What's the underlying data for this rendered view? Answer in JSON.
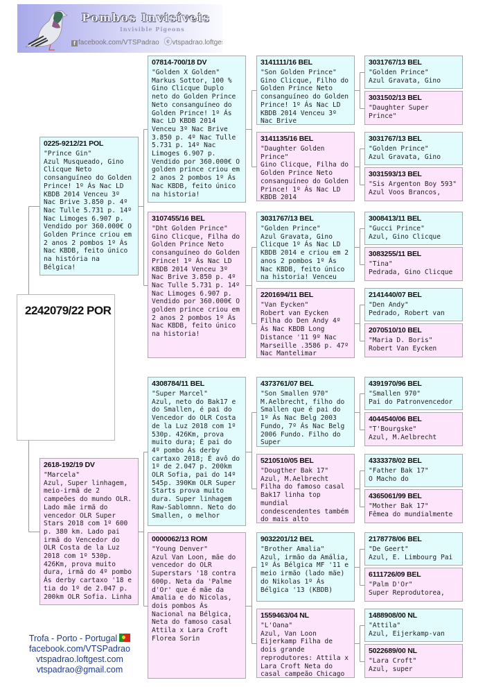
{
  "header": {
    "logo_title": "Pombos Invisíveis",
    "logo_subtitle": "Invisible Pigeons",
    "logo_facebook": "facebook.com/VTSPadrao",
    "logo_website": "vtspadrao.loftgest.com"
  },
  "colors": {
    "male": "#e2fbfd",
    "female": "#fde6fb",
    "border": "#a8a8a8",
    "footer_text": "#1c3a8c"
  },
  "subject": {
    "ring": "2242079/22 POR",
    "text": ""
  },
  "parents": [
    {
      "sex": "M",
      "ring": "0225-9212/21 POL",
      "text": "\"Prince Gin\"\nAzul Musqueado, Gino Clicque Neto consanguíneo do Golden Prince! 1º Ás Nac LD KBDB 2014 Venceu 3º Nac Brive 3.850 p. 4º Nac Tulle 5.731 p. 14º Nac Limoges 6.907 p. Vendido por 360.000€ O Golden Prince criou em 2 anos 2 pombos 1º Ás Nac KBDB, feito único na história na Bélgica!"
    },
    {
      "sex": "F",
      "ring": "2618-192/19 DV",
      "text": "\"Marcela\"\nAzul, Super linhagem, meio-irmã de 2 campeões do mundo OLR. Lado mãe irmã do vencedor OLR Super Stars 2018 com 1º 600 p. 380 km. Lado pai irmã do Vencedor do OLR Costa de la Luz 2018 com 1º 530p. 426Km, prova muito dura, irmã do 4º pombo Ás derby cartaxo '18 e tia do 1º de 2.047 p. 200km OLR Sofia. Linha"
    }
  ],
  "grandparents": [
    {
      "sex": "M",
      "ring": "07814-700/18 DV",
      "text": "\"Golden X Golden\"\nMarkus Sottor, 100 % Gino Clicque Duplo neto do Golden Prince Neto consanguíneo do Golden Prince! 1º Ás Nac LD KBDB 2014 Venceu 3º Nac Brive 3.850 p. 4º Nac Tulle 5.731 p. 14º Nac Limoges 6.907 p. Vendido por 360.000€ O golden prince criou em 2 anos 2 pombos 1º Ás Nac KBDB, feito único na historia!"
    },
    {
      "sex": "F",
      "ring": "3107455/16 BEL",
      "text": "\"Dht Golden Prince\"\nGino Clicque, Filha do Golden Prince Neto consanguíneo do Golden Prince! 1º Ás Nac LD KBDB 2014 Venceu 3º Nac Brive 3.850 p. 4º Nac Tulle 5.731 p. 14º Nac Limoges 6.907 p. Vendido por 360.000€ O golden prince criou em 2 anos 2 pombos 1º Ás Nac KBDB, feito único na historia!"
    },
    {
      "sex": "M",
      "ring": "4308784/11 BEL",
      "text": "\"Super Marcel\"\nAzul, neto do Bak17 e do Smallen, é pai do Vencedor do OLR Costa de la Luz 2018 com 1º 530p. 426Km, prova muito dura; É pai do 4º pombo Ás derby cartaxo 2018; É avô do 1º de 2.047 p. 200km OLR Sofia, pai do 14º 545p. 390Km OLR Super Starts prova muito dura. Super linhagem Raw-Sablomnn. Neto do Smallen, o melhor"
    },
    {
      "sex": "F",
      "ring": "0000062/13 ROM",
      "text": "\"Young Denver\"\nAzul Van Loon, mãe do vencedor do OLR Superstars '18 contra 600p. Neta da 'Palme d'Or' que é mãe da Amalia e do Nicolas, dois pombos Ás Nacional na Bélgica, Neta do famoso casal Attila x Lara Croft Florea Sorin"
    }
  ],
  "great_grandparents": [
    {
      "sex": "M",
      "ring": "3141111/16 BEL",
      "text": "\"Son Golden Prince\"\nGino Clicque, Filho do Golden Prince Neto consanguíneo do Golden Prince! 1º Ás Nac LD KBDB 2014 Venceu 3º Nac Brive"
    },
    {
      "sex": "F",
      "ring": "3141135/16 BEL",
      "text": "\"Daughter Golden Prince\"\nGino Clicque, Filha do Golden Prince Neto consanguíneo do Golden Prince! 1º Ás Nac LD KBDB 2014"
    },
    {
      "sex": "M",
      "ring": "3031767/13 BEL",
      "text": "\"Golden Prince\"\nAzul Gravata, Gino Clicque 1º Ás Nac LD KBDB 2014 e criou em 2 anos 2 pombos 1º Ás Nac KBDB, feito único na historia! Venceu"
    },
    {
      "sex": "F",
      "ring": "2201694/11 BEL",
      "text": "\"Van Eycken\"\nRobert van Eycken Filha do Den Andy 4º Ás Nac KBDB Long Distance '11 9º Nac Marseille .3586 p. 47º Nac Mantelimar"
    },
    {
      "sex": "M",
      "ring": "4373761/07 BEL",
      "text": "\"Son Smallen 970\"\nM.Aelbrecht, filho do Smallen que é pai do 1º Ás Nac Belg 2003 Fundo, 7º  Ás Nac Belg 2006 Fundo. Filho do Super"
    },
    {
      "sex": "F",
      "ring": "5210510/05 BEL",
      "text": "\"Dougther Bak 17\"\nAzul, M.Aelbrecht Filha do famoso casal Bak17 linha top mundial condescendentes também do mais alto"
    },
    {
      "sex": "M",
      "ring": "9032201/12 BEL",
      "text": "\"Brother Amalia\"\nAzul, irmão da Amália, 1º Ás Bélgica MF '11 e meio irmão (lado mãe) do Nikolas 1º Ás Bélgica '13 (KBDB)"
    },
    {
      "sex": "F",
      "ring": "1559463/04 NL",
      "text": "\"L'Oana\"\nAzul, Van Loon Eijerkamp Filha de dois grande reprodutores: Attila x Lara Croft Neta do casal campeão Chicago"
    }
  ],
  "great_great_grandparents": [
    {
      "sex": "M",
      "ring": "3031767/13 BEL",
      "text": "\"Golden Prince\"\nAzul Gravata, Gino"
    },
    {
      "sex": "F",
      "ring": "3031502/13 BEL",
      "text": "\"Daughter Super Prince\""
    },
    {
      "sex": "M",
      "ring": "3031767/13 BEL",
      "text": "\"Golden Prince\"\nAzul Gravata, Gino"
    },
    {
      "sex": "F",
      "ring": "3031593/13 BEL",
      "text": "\"Sis Argenton Boy 593\"\nAzul Voos Brancos,"
    },
    {
      "sex": "M",
      "ring": "3008413/11 BEL",
      "text": "\"Gucci Prince\"\nAzul, Gino Clicque"
    },
    {
      "sex": "F",
      "ring": "3083255/11 BEL",
      "text": "\"Tina\"\nPedrada, Gino Clicque"
    },
    {
      "sex": "M",
      "ring": "2141440/07 BEL",
      "text": "\"Den Andy\"\nPedrado, Robert van"
    },
    {
      "sex": "F",
      "ring": "2070510/10 BEL",
      "text": "\"Maria D. Boris\"\nRobert Van Eycken"
    },
    {
      "sex": "M",
      "ring": "4391970/96 BEL",
      "text": "\"Smallen 970\"\nPai do Patronvencedor"
    },
    {
      "sex": "F",
      "ring": "4044540/06 BEL",
      "text": "\"T'Bourgske\"\nAzul, M.Aelbrecht"
    },
    {
      "sex": "M",
      "ring": "4333378/02 BEL",
      "text": "\"Father Bak 17\"\nO Macho do"
    },
    {
      "sex": "F",
      "ring": "4365061/99 BEL",
      "text": "\"Mother Bak 17\"\nFêmea do mundialmente"
    },
    {
      "sex": "M",
      "ring": "2178778/06 BEL",
      "text": "\"De Geert\"\nAzul, E. Limbourg Pai"
    },
    {
      "sex": "F",
      "ring": "6111726/09 BEL",
      "text": "\"Palm D'Or\"\nSuper Reprodutorea,"
    },
    {
      "sex": "M",
      "ring": "1488908/00 NL",
      "text": "\"Attila\"\nAzul, Eijerkamp-van"
    },
    {
      "sex": "F",
      "ring": "5022689/00 NL",
      "text": "\"Lara Croft\"\nAzul, super"
    }
  ],
  "footer": {
    "location": "Trofa - Porto - Portugal",
    "facebook": "facebook.com/VTSPadrao",
    "website": "vtspadrao.loftgest.com",
    "email": "vtspadrao@gmail.com"
  }
}
